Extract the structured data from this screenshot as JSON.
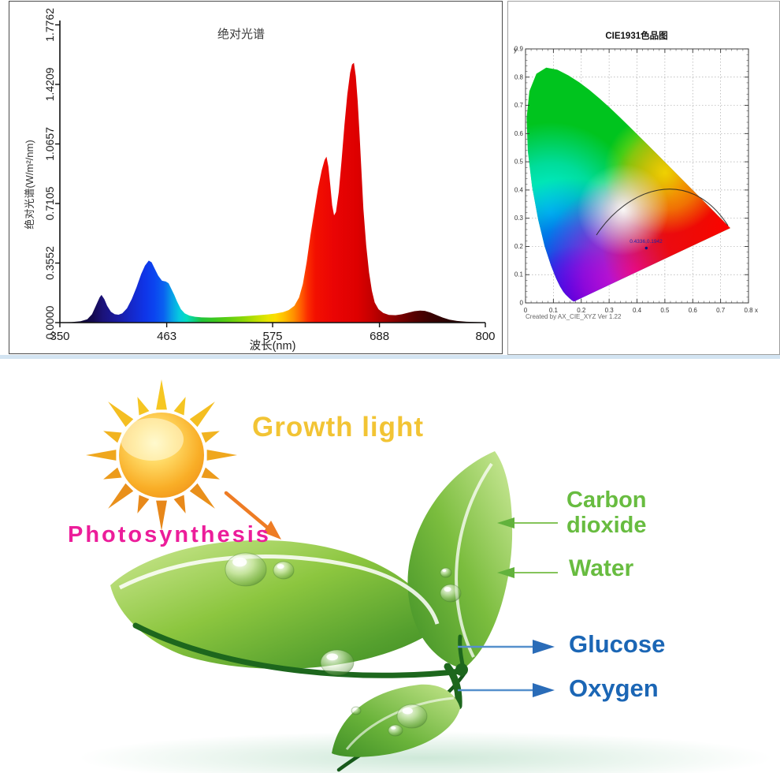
{
  "illustration": {
    "growth_light_label": "Growth light",
    "photosynthesis_label": "Photosynthesis",
    "carbon_dioxide_label": "Carbon dioxide",
    "water_label": "Water",
    "glucose_label": "Glucose",
    "oxygen_label": "Oxygen",
    "colors": {
      "growth_light_text": "#F2C434",
      "photosynthesis_text": "#EC1D9A",
      "input_labels_green": "#68BC40",
      "output_labels_blue": "#1B66B5",
      "sun_orange": "#EF8D15",
      "arrow_orange": "#EE7C24",
      "leaf_green": "#8CC63F",
      "stem_green": "#1D671D"
    }
  },
  "chart_data": [
    {
      "type": "area",
      "title": "绝对光谱",
      "xlabel": "波长(nm)",
      "ylabel": "绝对光谱(W/m²/nm)",
      "x_range": [
        350,
        800
      ],
      "y_range": [
        0,
        1.7762
      ],
      "x_ticks": [
        "350",
        "463",
        "575",
        "688",
        "800"
      ],
      "y_ticks": [
        "0.0000",
        "0.3552",
        "0.7105",
        "1.0657",
        "1.4209",
        "1.7762"
      ],
      "peaks_note": "violet peak ~394nm (0.17), blue peak ~445nm (0.37), blue shoulder ~463nm (0.25), red peak ~632nm (0.99), main red peak ~661nm (1.55), far-red bump ~731nm (0.07)",
      "points": [
        [
          350,
          0.002
        ],
        [
          362,
          0.003
        ],
        [
          372,
          0.008
        ],
        [
          379,
          0.02
        ],
        [
          384,
          0.05
        ],
        [
          388,
          0.1
        ],
        [
          392,
          0.15
        ],
        [
          394,
          0.165
        ],
        [
          397,
          0.14
        ],
        [
          400,
          0.1
        ],
        [
          404,
          0.065
        ],
        [
          408,
          0.05
        ],
        [
          412,
          0.047
        ],
        [
          416,
          0.055
        ],
        [
          421,
          0.085
        ],
        [
          426,
          0.14
        ],
        [
          431,
          0.21
        ],
        [
          436,
          0.29
        ],
        [
          440,
          0.34
        ],
        [
          444,
          0.37
        ],
        [
          447,
          0.36
        ],
        [
          450,
          0.325
        ],
        [
          454,
          0.28
        ],
        [
          458,
          0.25
        ],
        [
          462,
          0.245
        ],
        [
          465,
          0.235
        ],
        [
          468,
          0.2
        ],
        [
          471,
          0.165
        ],
        [
          474,
          0.125
        ],
        [
          478,
          0.08
        ],
        [
          482,
          0.055
        ],
        [
          487,
          0.042
        ],
        [
          493,
          0.035
        ],
        [
          500,
          0.031
        ],
        [
          510,
          0.03
        ],
        [
          520,
          0.032
        ],
        [
          530,
          0.034
        ],
        [
          540,
          0.036
        ],
        [
          550,
          0.04
        ],
        [
          560,
          0.044
        ],
        [
          570,
          0.049
        ],
        [
          578,
          0.054
        ],
        [
          586,
          0.062
        ],
        [
          592,
          0.075
        ],
        [
          598,
          0.1
        ],
        [
          603,
          0.15
        ],
        [
          607,
          0.23
        ],
        [
          611,
          0.36
        ],
        [
          615,
          0.52
        ],
        [
          619,
          0.66
        ],
        [
          623,
          0.8
        ],
        [
          627,
          0.91
        ],
        [
          630,
          0.97
        ],
        [
          632,
          0.99
        ],
        [
          634,
          0.93
        ],
        [
          636,
          0.82
        ],
        [
          638,
          0.7
        ],
        [
          640,
          0.64
        ],
        [
          642,
          0.66
        ],
        [
          645,
          0.78
        ],
        [
          648,
          0.97
        ],
        [
          651,
          1.18
        ],
        [
          654,
          1.36
        ],
        [
          657,
          1.49
        ],
        [
          659,
          1.54
        ],
        [
          661,
          1.55
        ],
        [
          663,
          1.47
        ],
        [
          665,
          1.32
        ],
        [
          667,
          1.12
        ],
        [
          669,
          0.9
        ],
        [
          671,
          0.68
        ],
        [
          674,
          0.46
        ],
        [
          677,
          0.3
        ],
        [
          680,
          0.19
        ],
        [
          683,
          0.12
        ],
        [
          687,
          0.08
        ],
        [
          692,
          0.058
        ],
        [
          698,
          0.046
        ],
        [
          705,
          0.044
        ],
        [
          712,
          0.05
        ],
        [
          719,
          0.06
        ],
        [
          725,
          0.068
        ],
        [
          731,
          0.072
        ],
        [
          736,
          0.07
        ],
        [
          742,
          0.06
        ],
        [
          748,
          0.046
        ],
        [
          755,
          0.03
        ],
        [
          762,
          0.018
        ],
        [
          770,
          0.01
        ],
        [
          780,
          0.005
        ],
        [
          800,
          0.002
        ]
      ],
      "gradient": [
        [
          350,
          "#05010e"
        ],
        [
          385,
          "#140a50"
        ],
        [
          395,
          "#1b1278"
        ],
        [
          410,
          "#1a1a9e"
        ],
        [
          425,
          "#1527c8"
        ],
        [
          440,
          "#0f35e8"
        ],
        [
          450,
          "#0b45f0"
        ],
        [
          460,
          "#0a62f0"
        ],
        [
          468,
          "#089ae8"
        ],
        [
          476,
          "#06c8e0"
        ],
        [
          484,
          "#04ddc0"
        ],
        [
          492,
          "#0ed080"
        ],
        [
          500,
          "#22c43a"
        ],
        [
          515,
          "#3fc81e"
        ],
        [
          530,
          "#63cf10"
        ],
        [
          545,
          "#8fd806"
        ],
        [
          558,
          "#bfe000"
        ],
        [
          570,
          "#e8e400"
        ],
        [
          578,
          "#fddd00"
        ],
        [
          588,
          "#ffbb00"
        ],
        [
          597,
          "#ff9100"
        ],
        [
          605,
          "#ff5e00"
        ],
        [
          612,
          "#fb2d00"
        ],
        [
          620,
          "#f31000"
        ],
        [
          640,
          "#ea0404"
        ],
        [
          665,
          "#dd0000"
        ],
        [
          680,
          "#c30000"
        ],
        [
          695,
          "#a00000"
        ],
        [
          710,
          "#780000"
        ],
        [
          725,
          "#560000"
        ],
        [
          740,
          "#3c0202"
        ],
        [
          760,
          "#2a0303"
        ],
        [
          800,
          "#1c0202"
        ]
      ]
    },
    {
      "type": "chromaticity-diagram",
      "title": "CIE1931色品图",
      "axis_x_name": "x",
      "axis_y_name": "y",
      "x_range": [
        0,
        0.8
      ],
      "y_range": [
        0,
        0.9
      ],
      "x_ticks": [
        "0",
        "0.1",
        "0.2",
        "0.3",
        "0.4",
        "0.5",
        "0.6",
        "0.7",
        "0.8"
      ],
      "y_ticks": [
        "0",
        "0.1",
        "0.2",
        "0.3",
        "0.4",
        "0.5",
        "0.6",
        "0.7",
        "0.8",
        "0.9"
      ],
      "point": {
        "x": 0.4336,
        "y": 0.1942,
        "label": "0.4336,0.1942"
      },
      "planckian_arc": [
        [
          0.25,
          0.24
        ],
        [
          0.5,
          0.42
        ],
        [
          0.72,
          0.27
        ]
      ],
      "credit": "Created by AX_CIE_XYZ Ver 1.22",
      "locus": [
        [
          0.1741,
          0.005
        ],
        [
          0.1669,
          0.0086
        ],
        [
          0.1566,
          0.0177
        ],
        [
          0.144,
          0.0297
        ],
        [
          0.1355,
          0.0399
        ],
        [
          0.1241,
          0.0578
        ],
        [
          0.1096,
          0.0868
        ],
        [
          0.0913,
          0.1327
        ],
        [
          0.0687,
          0.2007
        ],
        [
          0.0454,
          0.295
        ],
        [
          0.0235,
          0.4127
        ],
        [
          0.0082,
          0.5384
        ],
        [
          0.0039,
          0.6548
        ],
        [
          0.0139,
          0.7502
        ],
        [
          0.0389,
          0.812
        ],
        [
          0.0743,
          0.8338
        ],
        [
          0.1142,
          0.8262
        ],
        [
          0.1547,
          0.8059
        ],
        [
          0.1929,
          0.7816
        ],
        [
          0.2296,
          0.7543
        ],
        [
          0.2658,
          0.7243
        ],
        [
          0.3016,
          0.6923
        ],
        [
          0.3373,
          0.6589
        ],
        [
          0.3731,
          0.6245
        ],
        [
          0.4087,
          0.5896
        ],
        [
          0.4441,
          0.5547
        ],
        [
          0.4788,
          0.5202
        ],
        [
          0.5125,
          0.4866
        ],
        [
          0.5448,
          0.4544
        ],
        [
          0.5752,
          0.4242
        ],
        [
          0.6029,
          0.3965
        ],
        [
          0.627,
          0.3725
        ],
        [
          0.6482,
          0.3514
        ],
        [
          0.6658,
          0.334
        ],
        [
          0.6801,
          0.3197
        ],
        [
          0.6915,
          0.3083
        ],
        [
          0.7079,
          0.292
        ],
        [
          0.719,
          0.2809
        ],
        [
          0.726,
          0.274
        ],
        [
          0.7347,
          0.2653
        ]
      ]
    }
  ]
}
